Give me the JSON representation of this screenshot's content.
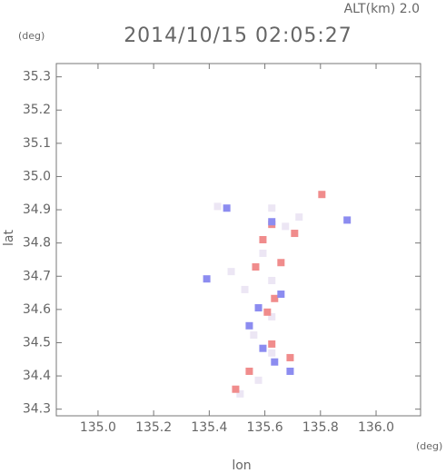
{
  "chart_data": {
    "type": "scatter",
    "title": "2014/10/15 02:05:27",
    "annotation": "ALT(km) 2.0",
    "y_unit": "(deg)",
    "x_unit": "(deg)",
    "xlabel": "lon",
    "ylabel": "lat",
    "xlim": [
      134.85,
      136.16
    ],
    "ylim": [
      34.28,
      35.34
    ],
    "xticks": [
      {
        "value": 135.0,
        "label": "135.0"
      },
      135.2,
      135.4,
      135.6,
      135.8,
      {
        "value": 136.0,
        "label": "136.0"
      }
    ],
    "yticks": [
      34.3,
      34.4,
      34.5,
      34.6,
      34.7,
      34.8,
      34.9,
      {
        "value": 35.0,
        "label": "35.0"
      },
      35.1,
      35.2,
      35.3
    ],
    "grid": false,
    "series": [
      {
        "color": "#ece6f4",
        "x": [
          135.43,
          135.625,
          135.674,
          135.593,
          135.625,
          135.528,
          135.625,
          135.56,
          135.625,
          135.577,
          135.511,
          135.723,
          135.479
        ],
        "y": [
          34.91,
          34.905,
          34.85,
          34.769,
          34.687,
          34.66,
          34.578,
          34.523,
          34.469,
          34.387,
          34.346,
          34.878,
          34.714
        ]
      },
      {
        "color": "#f08c8c",
        "x": [
          135.625,
          135.707,
          135.658,
          135.567,
          135.609,
          135.625,
          135.544,
          135.495,
          135.691,
          135.805,
          135.593,
          135.635
        ],
        "y": [
          34.856,
          34.829,
          34.741,
          34.728,
          34.592,
          34.496,
          34.414,
          34.36,
          34.455,
          34.946,
          34.81,
          34.633
        ]
      },
      {
        "color": "#8c8cf0",
        "x": [
          135.463,
          135.577,
          135.658,
          135.593,
          135.635,
          135.896,
          135.391,
          135.625,
          135.544,
          135.691
        ],
        "y": [
          34.905,
          34.605,
          34.646,
          34.483,
          34.442,
          34.869,
          34.692,
          34.864,
          34.551,
          34.414
        ]
      }
    ]
  }
}
